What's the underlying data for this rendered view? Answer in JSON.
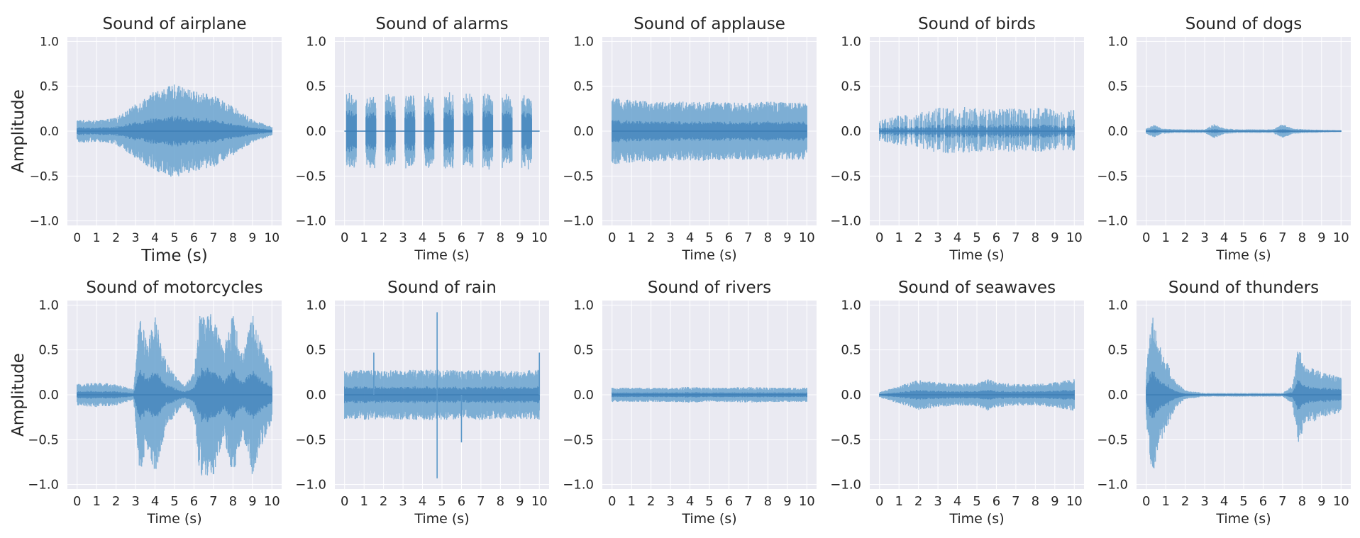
{
  "chart_data": {
    "type": "line",
    "xlabel": "Time (s)",
    "ylabel": "Amplitude",
    "xlim": [
      -0.5,
      10.5
    ],
    "ylim": [
      -1.05,
      1.05
    ],
    "xticks": [
      "0",
      "1",
      "2",
      "3",
      "4",
      "5",
      "6",
      "7",
      "8",
      "9",
      "10"
    ],
    "yticks": [
      "1.0",
      "0.5",
      "0.0",
      "−0.5",
      "−1.0"
    ],
    "grid": true,
    "color": "#4a90c4",
    "panels": [
      {
        "title": "Sound of airplane",
        "env_t": [
          0,
          1,
          2,
          3,
          4,
          5,
          6,
          7,
          8,
          9,
          10
        ],
        "env_a": [
          0.13,
          0.12,
          0.15,
          0.3,
          0.45,
          0.52,
          0.45,
          0.4,
          0.28,
          0.13,
          0.05
        ]
      },
      {
        "title": "Sound of alarms",
        "bursts": [
          0.35,
          1.35,
          2.35,
          3.35,
          4.35,
          5.35,
          6.35,
          7.35,
          8.35,
          9.35
        ],
        "burst_width": 0.5,
        "burst_amp": 0.44
      },
      {
        "title": "Sound of applause",
        "env_t": [
          0,
          1,
          2,
          3,
          4,
          5,
          6,
          7,
          8,
          9,
          10
        ],
        "env_a": [
          0.37,
          0.35,
          0.34,
          0.33,
          0.33,
          0.33,
          0.32,
          0.32,
          0.33,
          0.32,
          0.32
        ]
      },
      {
        "title": "Sound of birds",
        "spiky": true,
        "env_t": [
          0,
          1,
          2,
          3,
          4,
          5,
          6,
          7,
          8,
          9,
          10
        ],
        "env_a": [
          0.12,
          0.18,
          0.2,
          0.27,
          0.28,
          0.26,
          0.25,
          0.26,
          0.26,
          0.25,
          0.25
        ]
      },
      {
        "title": "Sound of dogs",
        "env_t": [
          0,
          0.4,
          0.8,
          1.5,
          3,
          3.5,
          4,
          4.8,
          6.5,
          7,
          7.5,
          8.2,
          10
        ],
        "env_a": [
          0.03,
          0.07,
          0.03,
          0.02,
          0.02,
          0.08,
          0.03,
          0.02,
          0.02,
          0.08,
          0.03,
          0.02,
          0.01
        ]
      },
      {
        "title": "Sound of motorcycles",
        "env_t": [
          0,
          1,
          2,
          2.9,
          3.2,
          3.6,
          4,
          4.6,
          5.5,
          6,
          6.3,
          7,
          7.5,
          8,
          8.5,
          9,
          9.5,
          10
        ],
        "env_a": [
          0.12,
          0.14,
          0.12,
          0.06,
          0.88,
          0.6,
          0.88,
          0.35,
          0.1,
          0.25,
          0.9,
          0.9,
          0.5,
          0.9,
          0.45,
          0.9,
          0.55,
          0.3
        ]
      },
      {
        "title": "Sound of rain",
        "env_t": [
          0,
          1,
          2,
          3,
          4,
          5,
          6,
          7,
          8,
          9,
          10
        ],
        "env_a": [
          0.27,
          0.28,
          0.27,
          0.28,
          0.28,
          0.28,
          0.27,
          0.28,
          0.27,
          0.27,
          0.28
        ],
        "spikes": [
          {
            "x": 4.75,
            "y": 0.92
          },
          {
            "x": 4.75,
            "y": -0.93
          },
          {
            "x": 1.5,
            "y": 0.47
          },
          {
            "x": 6.0,
            "y": -0.53
          },
          {
            "x": 10.0,
            "y": 0.47
          }
        ]
      },
      {
        "title": "Sound of rivers",
        "env_t": [
          0,
          1,
          2,
          3,
          4,
          5,
          6,
          7,
          8,
          9,
          10
        ],
        "env_a": [
          0.08,
          0.08,
          0.08,
          0.08,
          0.09,
          0.08,
          0.08,
          0.09,
          0.08,
          0.08,
          0.08
        ]
      },
      {
        "title": "Sound of seawaves",
        "env_t": [
          0,
          1,
          2,
          3,
          4,
          5,
          5.6,
          6,
          7,
          8,
          9,
          10
        ],
        "env_a": [
          0.03,
          0.1,
          0.17,
          0.14,
          0.12,
          0.13,
          0.18,
          0.14,
          0.12,
          0.12,
          0.14,
          0.18
        ]
      },
      {
        "title": "Sound of thunders",
        "env_t": [
          0,
          0.3,
          0.6,
          1,
          1.5,
          2,
          3,
          5,
          7,
          7.5,
          7.8,
          8.2,
          8.6,
          9,
          10
        ],
        "env_a": [
          0.3,
          0.95,
          0.6,
          0.4,
          0.15,
          0.05,
          0.02,
          0.02,
          0.02,
          0.1,
          0.55,
          0.3,
          0.3,
          0.25,
          0.2
        ]
      }
    ]
  }
}
